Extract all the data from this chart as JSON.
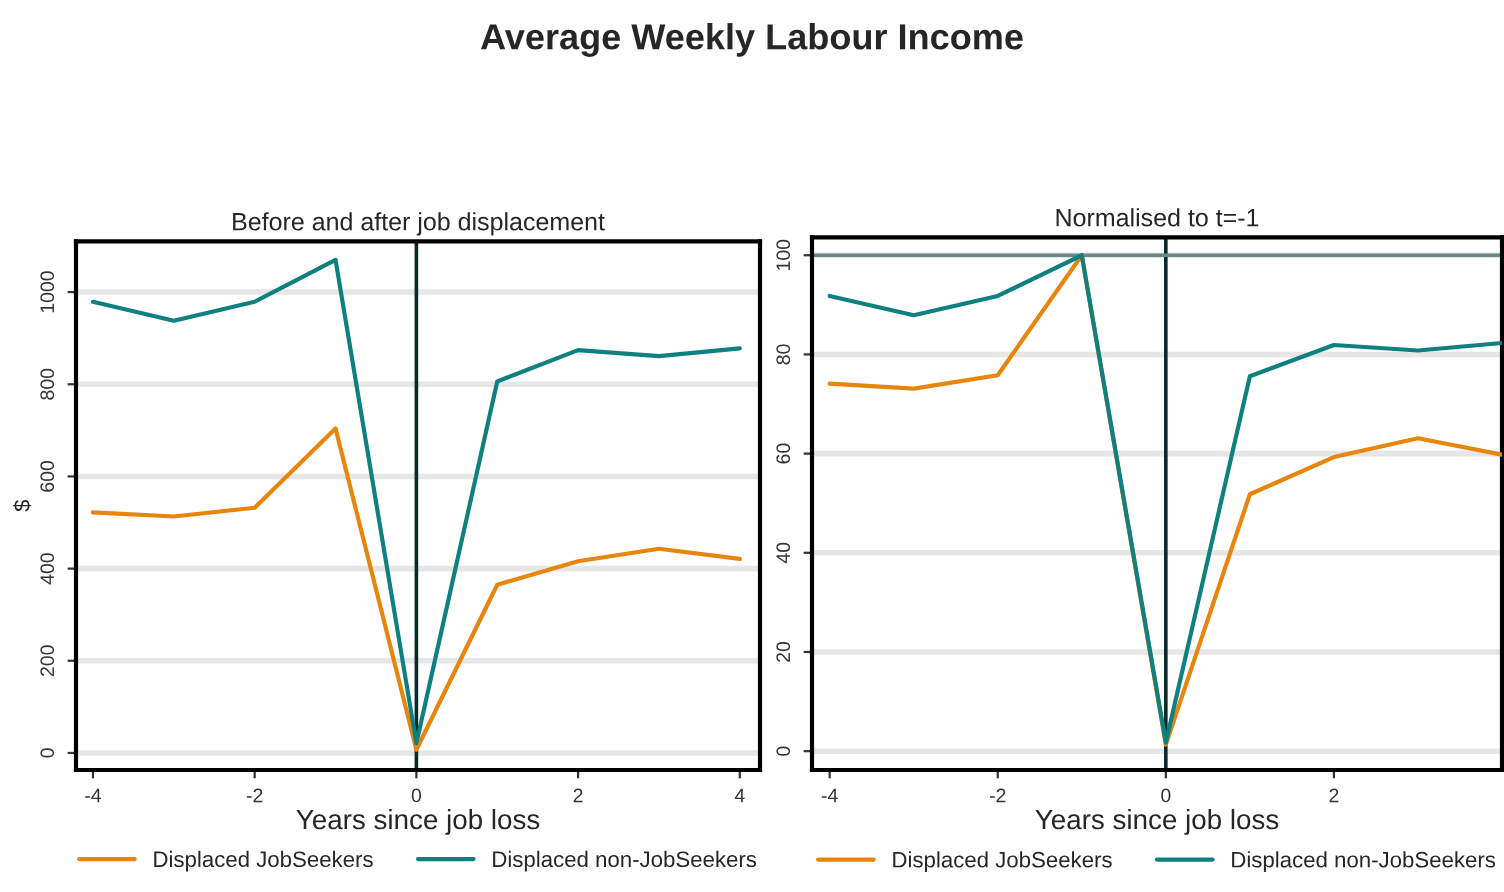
{
  "chart_data": [
    {
      "type": "line",
      "title": "Before and after job displacement",
      "xlabel": "Years since job loss",
      "ylabel": "$",
      "annotations": [
        "Average Weekly Labour Income"
      ],
      "x": [
        -4,
        -3,
        -2,
        -1,
        0,
        1,
        2,
        3,
        4
      ],
      "series": [
        {
          "name": "Displaced JobSeekers",
          "color": "#e8850c",
          "values": [
            522,
            513,
            532,
            704,
            7,
            365,
            416,
            443,
            421
          ]
        },
        {
          "name": "Displaced non-JobSeekers",
          "color": "#0f8080",
          "values": [
            979,
            938,
            979,
            1070,
            21,
            806,
            874,
            861,
            878
          ]
        }
      ],
      "xlim": [
        -4.21,
        4.25
      ],
      "ylim": [
        -37,
        1110
      ],
      "xticks": [
        -4,
        -2,
        0,
        2,
        4
      ],
      "yticks": [
        0,
        200,
        400,
        600,
        800,
        1000
      ],
      "ref_lines": [
        {
          "axis": "x",
          "value": 0,
          "color": "#0a2a2a"
        }
      ],
      "grid": "y",
      "legend": "bottom"
    },
    {
      "type": "line",
      "title": "Normalised to t=-1",
      "xlabel": "Years since job loss",
      "x": [
        -4,
        -3,
        -2,
        -1,
        0,
        1,
        2,
        3,
        4
      ],
      "series": [
        {
          "name": "Displaced JobSeekers",
          "color": "#e8850c",
          "values": [
            74.1,
            73.1,
            75.8,
            100,
            1.3,
            51.8,
            59.3,
            63.1,
            59.8
          ]
        },
        {
          "name": "Displaced non-JobSeekers",
          "color": "#0f8080",
          "values": [
            91.8,
            87.9,
            91.8,
            100,
            1.7,
            75.6,
            81.9,
            80.8,
            82.3
          ]
        }
      ],
      "xlim": [
        -4.21,
        4.0
      ],
      "ylim": [
        -3.8,
        103.6
      ],
      "xticks": [
        -4,
        -2,
        0,
        2
      ],
      "yticks": [
        0,
        20,
        40,
        60,
        80,
        100
      ],
      "ref_lines": [
        {
          "axis": "x",
          "value": 0,
          "color": "#0a2a2a"
        },
        {
          "axis": "y",
          "value": 100,
          "color": "#6a8a8a"
        }
      ],
      "grid": "y",
      "legend": "bottom"
    }
  ]
}
